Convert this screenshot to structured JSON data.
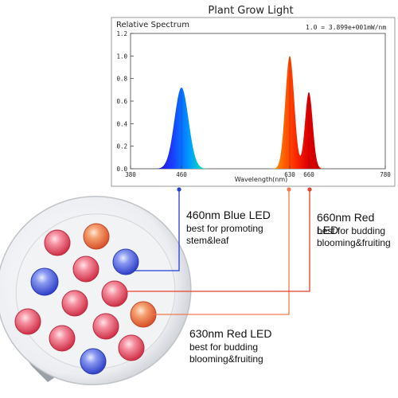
{
  "chart_data": {
    "type": "area",
    "title": "Plant Grow Light",
    "ylabel": "Relative Spectrum",
    "xlabel": "Wavelength(nm)",
    "note": "1.0 = 3.899e+001mW/nm",
    "xlim": [
      380,
      780
    ],
    "ylim": [
      0,
      1.2
    ],
    "xticks": [
      380,
      460,
      630,
      660,
      780
    ],
    "yticks": [
      "0.0",
      "0.2",
      "0.4",
      "0.6",
      "0.8",
      "1.0",
      "1.2"
    ],
    "grid": false,
    "peaks": [
      {
        "wavelength": 460,
        "value": 0.72,
        "color": "#1a3cff"
      },
      {
        "wavelength": 630,
        "value": 1.0,
        "color": "#e00000"
      },
      {
        "wavelength": 660,
        "value": 0.68,
        "color": "#c40000"
      }
    ]
  },
  "annotations": [
    {
      "key": "blue460",
      "title": "460nm Blue LED",
      "desc": [
        "best for promoting",
        "stem&leaf"
      ],
      "color": "#1f3fd6"
    },
    {
      "key": "red660",
      "title": "660nm Red LED",
      "desc": [
        "best for budding",
        "blooming&fruiting"
      ],
      "color": "#e8402a"
    },
    {
      "key": "red630",
      "title": "630nm Red LED",
      "desc": [
        "best for budding",
        "blooming&fruiting"
      ],
      "color": "#f07a50"
    }
  ]
}
